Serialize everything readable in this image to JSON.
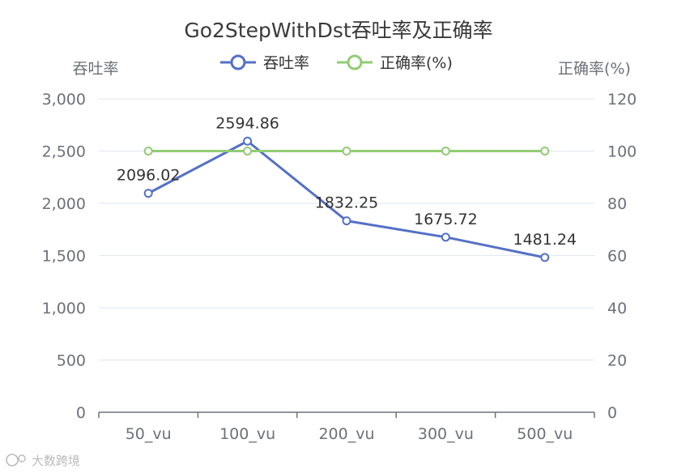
{
  "chart_data": {
    "type": "line",
    "title": "Go2StepWithDst吞吐率及正确率",
    "categories": [
      "50_vu",
      "100_vu",
      "200_vu",
      "300_vu",
      "500_vu"
    ],
    "y_left": {
      "label": "吞吐率",
      "ylim": [
        0,
        3000
      ],
      "ticks": [
        "0",
        "500",
        "1,000",
        "1,500",
        "2,000",
        "2,500",
        "3,000"
      ]
    },
    "y_right": {
      "label": "正确率(%)",
      "ylim": [
        0,
        120
      ],
      "ticks": [
        "0",
        "20",
        "40",
        "60",
        "80",
        "100",
        "120"
      ]
    },
    "series": [
      {
        "name": "吞吐率",
        "axis": "left",
        "color": "#5470c6",
        "values": [
          2096.02,
          2594.86,
          1832.25,
          1675.72,
          1481.24
        ],
        "labels": [
          "2096.02",
          "2594.86",
          "1832.25",
          "1675.72",
          "1481.24"
        ]
      },
      {
        "name": "正确率(%)",
        "axis": "right",
        "color": "#91cc75",
        "values": [
          100,
          100,
          100,
          100,
          100
        ]
      }
    ],
    "legend": "top-center",
    "grid": true
  },
  "watermark": "大数跨境"
}
